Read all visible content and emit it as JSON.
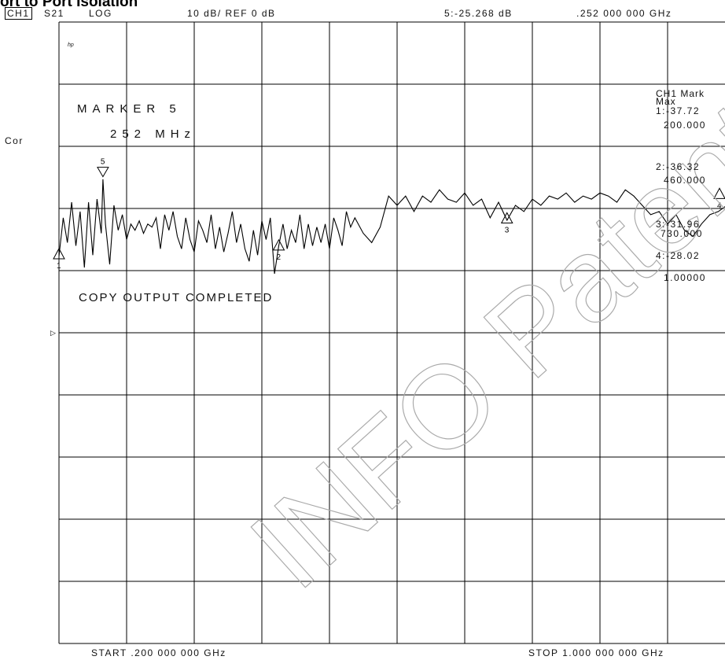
{
  "page": {
    "title": "ort to Port Isolation",
    "watermark": "INFO Patent App"
  },
  "header": {
    "channel": "CH1",
    "parameter": "S21",
    "format": "LOG",
    "scale": "10 dB/ REF 0 dB",
    "active_marker_readout": "5:-25.268 dB",
    "active_marker_freq": ".252 000 000 GHz"
  },
  "side": {
    "cor_label": "Cor",
    "small_label": "hp"
  },
  "screen_text": {
    "marker_title": "MARKER 5",
    "marker_freq": "252 MHz",
    "copy_status": "COPY OUTPUT COMPLETED"
  },
  "marker_panel": {
    "title": "CH1 Mark",
    "subtitle": "Max",
    "entries": [
      {
        "value": "1:-37.72",
        "freq": "200.000"
      },
      {
        "value": "2:-36.32",
        "freq": "460.000"
      },
      {
        "value": "3:-31.96",
        "freq": "730.000"
      },
      {
        "value": "4:-28.02",
        "freq": "1.00000"
      }
    ]
  },
  "footer": {
    "start": "START .200 000 000 GHz",
    "stop": "STOP 1.000 000 000 GHz"
  },
  "chart_data": {
    "type": "line",
    "title": "",
    "xlabel": "",
    "ylabel": "",
    "x_unit": "GHz",
    "y_unit": "dB",
    "xlim": [
      0.2,
      1.0
    ],
    "ylim": [
      -100,
      0
    ],
    "reference_level": 0,
    "scale_per_div": 10,
    "grid": true,
    "series": [
      {
        "x": [
          0.2,
          0.205,
          0.21,
          0.215,
          0.22,
          0.225,
          0.23,
          0.235,
          0.24,
          0.245,
          0.25,
          0.252,
          0.255,
          0.26,
          0.265,
          0.27,
          0.275,
          0.28,
          0.285,
          0.29,
          0.295,
          0.3,
          0.305,
          0.31,
          0.315,
          0.32,
          0.325,
          0.33,
          0.335,
          0.34,
          0.345,
          0.35,
          0.355,
          0.36,
          0.365,
          0.37,
          0.375,
          0.38,
          0.385,
          0.39,
          0.395,
          0.4,
          0.405,
          0.41,
          0.415,
          0.42,
          0.425,
          0.43,
          0.435,
          0.44,
          0.445,
          0.45,
          0.455,
          0.46,
          0.465,
          0.47,
          0.475,
          0.48,
          0.485,
          0.49,
          0.495,
          0.5,
          0.505,
          0.51,
          0.515,
          0.52,
          0.525,
          0.53,
          0.535,
          0.54,
          0.545,
          0.55,
          0.56,
          0.57,
          0.58,
          0.59,
          0.6,
          0.61,
          0.62,
          0.63,
          0.64,
          0.65,
          0.66,
          0.67,
          0.68,
          0.69,
          0.7,
          0.71,
          0.72,
          0.73,
          0.74,
          0.75,
          0.76,
          0.77,
          0.78,
          0.79,
          0.8,
          0.81,
          0.82,
          0.83,
          0.84,
          0.85,
          0.86,
          0.87,
          0.88,
          0.89,
          0.9,
          0.91,
          0.92,
          0.93,
          0.94,
          0.95,
          0.96,
          0.97,
          0.98,
          0.99,
          1.0
        ],
        "y": [
          -37.7,
          -31.5,
          -35.5,
          -29.0,
          -36.0,
          -30.5,
          -39.5,
          -29.0,
          -37.5,
          -28.5,
          -34.0,
          -25.3,
          -32.5,
          -39.0,
          -29.5,
          -33.5,
          -31.0,
          -35.0,
          -32.5,
          -33.5,
          -32.0,
          -34.0,
          -32.5,
          -33.0,
          -31.5,
          -36.5,
          -31.0,
          -33.5,
          -30.5,
          -34.5,
          -36.5,
          -31.5,
          -35.0,
          -37.0,
          -32.0,
          -33.5,
          -35.5,
          -31.0,
          -36.5,
          -33.0,
          -37.0,
          -34.0,
          -30.5,
          -35.5,
          -32.5,
          -36.5,
          -38.5,
          -33.5,
          -37.5,
          -32.0,
          -35.0,
          -31.5,
          -40.5,
          -36.0,
          -32.5,
          -36.5,
          -33.5,
          -35.5,
          -31.0,
          -36.5,
          -32.5,
          -36.0,
          -33.0,
          -35.5,
          -32.5,
          -36.5,
          -31.5,
          -33.5,
          -36.0,
          -30.5,
          -33.0,
          -31.5,
          -34.0,
          -35.5,
          -33.0,
          -28.0,
          -29.5,
          -28.0,
          -30.5,
          -28.0,
          -29.0,
          -27.0,
          -28.5,
          -29.0,
          -27.5,
          -29.5,
          -28.5,
          -31.5,
          -29.0,
          -31.9,
          -29.5,
          -30.5,
          -28.5,
          -29.5,
          -28.0,
          -28.5,
          -27.5,
          -29.0,
          -28.0,
          -28.5,
          -27.5,
          -28.0,
          -29.0,
          -27.0,
          -28.0,
          -29.5,
          -31.0,
          -30.5,
          -32.5,
          -31.0,
          -33.5,
          -34.5,
          -32.5,
          -31.0,
          -30.5,
          -29.5,
          -28.0
        ]
      }
    ],
    "markers": [
      {
        "label": "1",
        "x": 0.2,
        "y": -37.72
      },
      {
        "label": "2",
        "x": 0.46,
        "y": -36.32
      },
      {
        "label": "3",
        "x": 0.73,
        "y": -31.96
      },
      {
        "label": "4",
        "x": 1.0,
        "y": -28.02
      },
      {
        "label": "5",
        "x": 0.252,
        "y": -25.268
      }
    ]
  },
  "colors": {
    "background": "#ffffff",
    "grid": "#000000",
    "trace": "#000000",
    "watermark": "#999999"
  }
}
